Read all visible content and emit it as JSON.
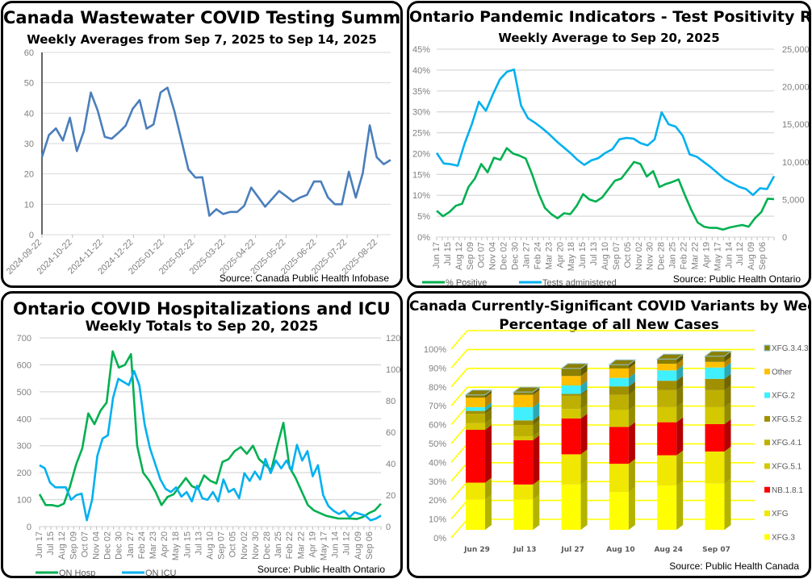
{
  "panels": {
    "wastewater": {
      "title": "Canada Wastewater  COVID Testing Summary",
      "subtitle": "Weekly Averages from Sep 7, 2025 to Sep 14, 2025",
      "source": "Source: Canada Public Health Infobase"
    },
    "positivity": {
      "title": "Ontario Pandemic Indicators - Test Positivity Rate",
      "subtitle": "Weekly Average to Sep 20, 2025",
      "source": "Source: Public Health Ontario"
    },
    "hospital": {
      "title": "Ontario COVID Hospitalizations  and ICU",
      "subtitle": "Weekly Totals to Sep 20, 2025",
      "source": "Source: Public Health Ontario"
    },
    "variants": {
      "title": "Canada Currently-Significant COVID Variants by Week",
      "subtitle": "Percentage of all New Cases",
      "source": "Source: Public Health Canada"
    }
  },
  "chart_data": [
    {
      "id": "wastewater",
      "type": "line",
      "title": "Canada Wastewater  COVID Testing Summary",
      "subtitle": "Weekly Averages from Sep 7, 2025 to Sep 14, 2025",
      "xlabel": "",
      "ylabel": "",
      "ylim": [
        0,
        60
      ],
      "yticks": [
        "0",
        "10",
        "20",
        "30",
        "40",
        "50",
        "60"
      ],
      "xticks": [
        "2024-09-22",
        "2024-10-22",
        "2024-11-22",
        "2024-12-22",
        "2025-01-22",
        "2025-02-22",
        "2025-03-22",
        "2025-04-22",
        "2025-05-22",
        "2025-06-22",
        "2025-07-22",
        "2025-08-22"
      ],
      "grid": true,
      "color": "#4a7ebb",
      "values": [
        25.5,
        32.8,
        35,
        31,
        38.5,
        27.5,
        34,
        46.8,
        40.8,
        32.2,
        31.6,
        33.6,
        35.9,
        41.4,
        44.3,
        34.9,
        36.3,
        46.8,
        48.4,
        40.5,
        31.1,
        21.5,
        18.8,
        18.9,
        6.2,
        8.4,
        6.8,
        7.5,
        7.5,
        9.5,
        15.5,
        12.4,
        9.2,
        11.8,
        14.4,
        12.7,
        10.9,
        12.2,
        13.1,
        17.5,
        17.5,
        12.3,
        10,
        10,
        20.7,
        12.2,
        20.2,
        36,
        25.5,
        23.2,
        24.6
      ]
    },
    {
      "id": "positivity",
      "type": "line",
      "title": "Ontario Pandemic Indicators - Test Positivity Rate",
      "subtitle": "Weekly Average to Sep 20, 2025",
      "ylim_left": [
        0,
        45
      ],
      "ylim_right": [
        0,
        25000
      ],
      "yticks_left": [
        "0%",
        "5%",
        "10%",
        "15%",
        "20%",
        "25%",
        "30%",
        "35%",
        "40%",
        "45%"
      ],
      "yticks_right": [
        "0",
        "5,000",
        "10,000",
        "15,000",
        "20,000",
        "25,000"
      ],
      "xticks": [
        "Jun 17",
        "Jul 15",
        "Aug 12",
        "Sep 09",
        "Oct 07",
        "Nov 04",
        "Dec 02",
        "Dec 30",
        "Jan 27",
        "Feb 24",
        "Mar 23",
        "Apr 20",
        "May 18",
        "Jun 15",
        "Jul 13",
        "Aug 10",
        "Sep 07",
        "Oct 05",
        "Nov 02",
        "Nov 30",
        "Dec 28",
        "Jan 25",
        "Feb 22",
        "Mar 22",
        "Apr 19",
        "May 17",
        "Jun 14",
        "Jul 12",
        "Aug 09",
        "Sep 06"
      ],
      "grid": true,
      "legend": "bottom-left",
      "series": [
        {
          "name": "% Positive",
          "axis": "left",
          "color": "#00b050",
          "values": [
            6.3,
            5,
            6,
            7.5,
            8,
            12,
            14,
            17.5,
            15.5,
            19,
            18.5,
            21.3,
            20,
            19.5,
            18.8,
            15,
            10.5,
            7,
            5.5,
            4.5,
            5.7,
            5.5,
            7.5,
            10.3,
            9,
            8.5,
            9.5,
            11.5,
            13.5,
            14,
            16,
            18,
            17.5,
            14.5,
            15.8,
            12,
            12.7,
            13.2,
            13.8,
            10,
            6.5,
            3.5,
            2.5,
            2.2,
            2.2,
            1.8,
            2.3,
            2.6,
            2.9,
            2.5,
            4.5,
            6,
            9.2,
            9.1
          ]
        },
        {
          "name": "Tests administered",
          "axis": "right",
          "color": "#00b0f0",
          "values": [
            11200,
            9800,
            9700,
            9500,
            12500,
            15000,
            18000,
            16800,
            19000,
            21000,
            22000,
            22300,
            17500,
            15800,
            15200,
            14500,
            13700,
            12800,
            12000,
            11200,
            10300,
            9600,
            10200,
            10500,
            11200,
            11700,
            13000,
            13200,
            13100,
            12500,
            12200,
            13000,
            16600,
            15000,
            14700,
            13500,
            11000,
            10700,
            10000,
            9300,
            8500,
            7700,
            7200,
            6700,
            6400,
            5600,
            6500,
            6400,
            8100
          ]
        }
      ]
    },
    {
      "id": "hospital",
      "type": "line",
      "title": "Ontario COVID Hospitalizations  and ICU",
      "subtitle": "Weekly Totals to Sep 20, 2025",
      "ylim_left": [
        0,
        700
      ],
      "ylim_right": [
        0,
        120
      ],
      "yticks_left": [
        "0",
        "100",
        "200",
        "300",
        "400",
        "500",
        "600",
        "700"
      ],
      "yticks_right": [
        "0",
        "20",
        "40",
        "60",
        "80",
        "100",
        "120"
      ],
      "xticks": [
        "Jun 17",
        "Jul 15",
        "Aug 12",
        "Sep 09",
        "Oct 07",
        "Nov 04",
        "Dec 02",
        "Dec 30",
        "Jan 27",
        "Feb 24",
        "Mar 23",
        "Apr 20",
        "May 18",
        "Jun 15",
        "Jul 13",
        "Aug 10",
        "Sep 07",
        "Oct 05",
        "Nov 02",
        "Nov 30",
        "Dec 28",
        "Jan 25",
        "Feb 22",
        "Mar 22",
        "Apr 19",
        "May 17",
        "Jun 14",
        "Jul 12",
        "Aug 09",
        "Sep 06"
      ],
      "grid": true,
      "legend": "bottom-left",
      "series": [
        {
          "name": "ON Hosp",
          "axis": "left",
          "color": "#00b050",
          "values": [
            120,
            80,
            80,
            75,
            85,
            150,
            230,
            290,
            420,
            380,
            430,
            460,
            650,
            590,
            600,
            640,
            300,
            200,
            170,
            130,
            80,
            110,
            120,
            150,
            180,
            150,
            140,
            190,
            170,
            160,
            240,
            250,
            280,
            295,
            270,
            300,
            250,
            230,
            210,
            300,
            385,
            220,
            180,
            130,
            80,
            60,
            50,
            40,
            35,
            30,
            30,
            30,
            28,
            35,
            50,
            60,
            85
          ]
        },
        {
          "name": "ON ICU",
          "axis": "right",
          "color": "#00b0f0",
          "values": [
            39,
            37,
            28,
            25,
            25,
            25,
            17,
            20,
            21,
            4,
            17,
            45,
            56,
            58,
            82,
            94,
            92,
            90,
            99,
            90,
            65,
            50,
            40,
            30,
            24,
            22,
            25,
            19,
            22,
            16,
            26,
            18,
            17,
            22,
            16,
            30,
            22,
            24,
            18,
            34,
            29,
            35,
            30,
            43,
            34,
            42,
            37,
            42,
            36,
            52,
            42,
            48,
            32,
            39,
            20,
            13,
            10,
            8,
            10,
            6,
            9,
            8,
            7,
            4,
            5,
            7
          ]
        }
      ]
    },
    {
      "id": "variants",
      "type": "bar",
      "stacked": true,
      "style": "3d",
      "title": "Canada Currently-Significant COVID Variants by Week",
      "subtitle": "Percentage of all New Cases",
      "categories": [
        "Jun 29",
        "Jul 13",
        "Jul 27",
        "Aug 10",
        "Aug 24",
        "Sep 07"
      ],
      "ylim": [
        0,
        100
      ],
      "yticks": [
        "0%",
        "10%",
        "20%",
        "30%",
        "40%",
        "50%",
        "60%",
        "70%",
        "80%",
        "90%",
        "100%"
      ],
      "grid": true,
      "legend": "right",
      "series": [
        {
          "name": "XFG.3",
          "color": "#ffff00",
          "values": [
            16,
            16,
            24,
            20,
            23.5,
            24.5
          ]
        },
        {
          "name": "XFG",
          "color": "#f0e800",
          "values": [
            9,
            8,
            16,
            15,
            16,
            17
          ]
        },
        {
          "name": "NB.1.8.1",
          "color": "#ff0000",
          "values": [
            28,
            23.5,
            19,
            19.5,
            17.5,
            14.5
          ]
        },
        {
          "name": "XFG.5.1",
          "color": "#d4c800",
          "values": [
            3.5,
            2,
            5,
            9,
            8,
            9
          ]
        },
        {
          "name": "XFG.4.1",
          "color": "#bdb000",
          "values": [
            5,
            6,
            7,
            8,
            9,
            9
          ]
        },
        {
          "name": "XFG.5.2",
          "color": "#a09000",
          "values": [
            1.5,
            2.5,
            1,
            4.5,
            5,
            6
          ]
        },
        {
          "name": "XFG.2",
          "color": "#40f0ff",
          "values": [
            2,
            7,
            4.5,
            4.5,
            5.5,
            6
          ]
        },
        {
          "name": "Other",
          "color": "#ffc000",
          "values": [
            5,
            6.5,
            5,
            5,
            3.5,
            3
          ]
        },
        {
          "name": "XFG.3.4.3",
          "color": "#8b8000",
          "values": [
            1.5,
            1.5,
            4,
            2,
            2.5,
            3
          ]
        }
      ]
    }
  ]
}
